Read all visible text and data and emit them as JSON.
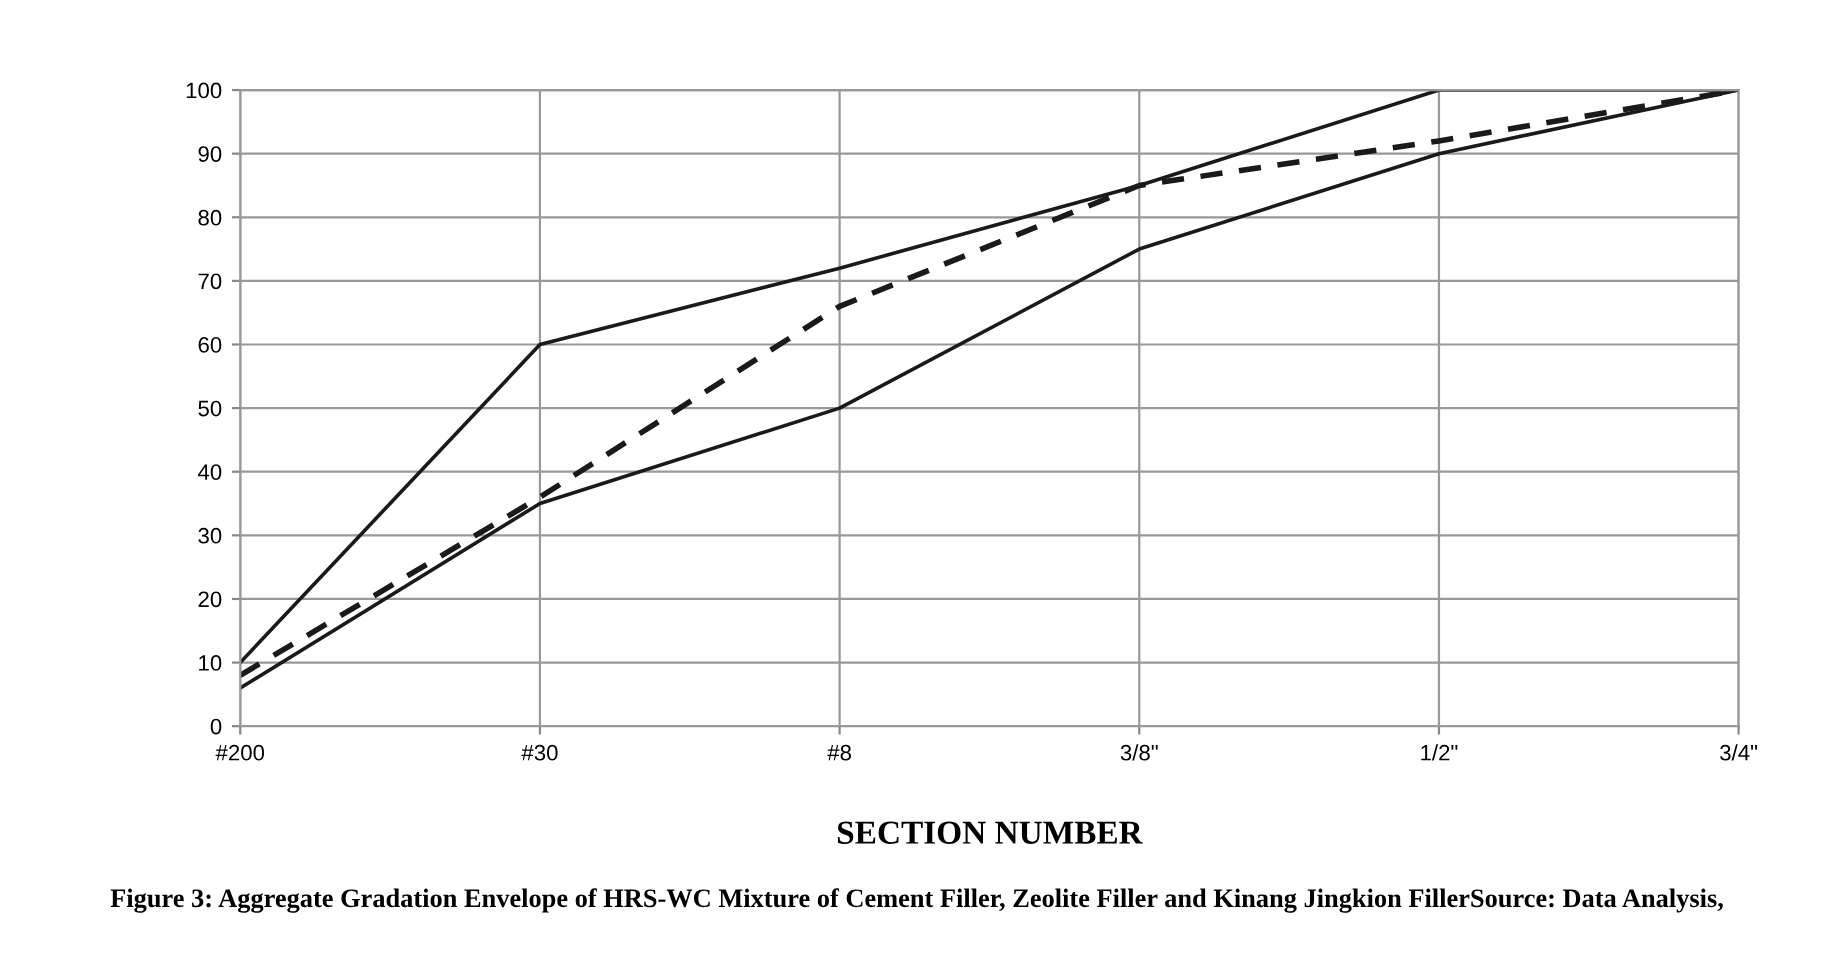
{
  "chart_data": {
    "type": "line",
    "xlabel": "SECTION NUMBER",
    "categories": [
      "#200",
      "#30",
      "#8",
      "3/8\"",
      "1/2\"",
      "3/4\""
    ],
    "series": [
      {
        "color": "#1a1a1a",
        "line_style": "solid",
        "values": [
          10,
          60,
          72,
          85,
          100,
          100
        ]
      },
      {
        "color": "#1a1a1a",
        "line_style": "dashed",
        "values": [
          8,
          36,
          66,
          85,
          92,
          100
        ]
      },
      {
        "color": "#1a1a1a",
        "line_style": "solid",
        "values": [
          6,
          35,
          50,
          75,
          90,
          100
        ]
      }
    ],
    "ylim": [
      0,
      100
    ],
    "yticks": [
      0,
      10,
      20,
      30,
      40,
      50,
      60,
      70,
      80,
      90,
      100
    ],
    "grid": true,
    "marker": "none",
    "annotations": [
      "Figure 3: Aggregate Gradation Envelope of HRS-WC Mixture of Cement Filler, Zeolite Filler and Kinang Jingkion FillerSource: Data Analysis,"
    ]
  }
}
